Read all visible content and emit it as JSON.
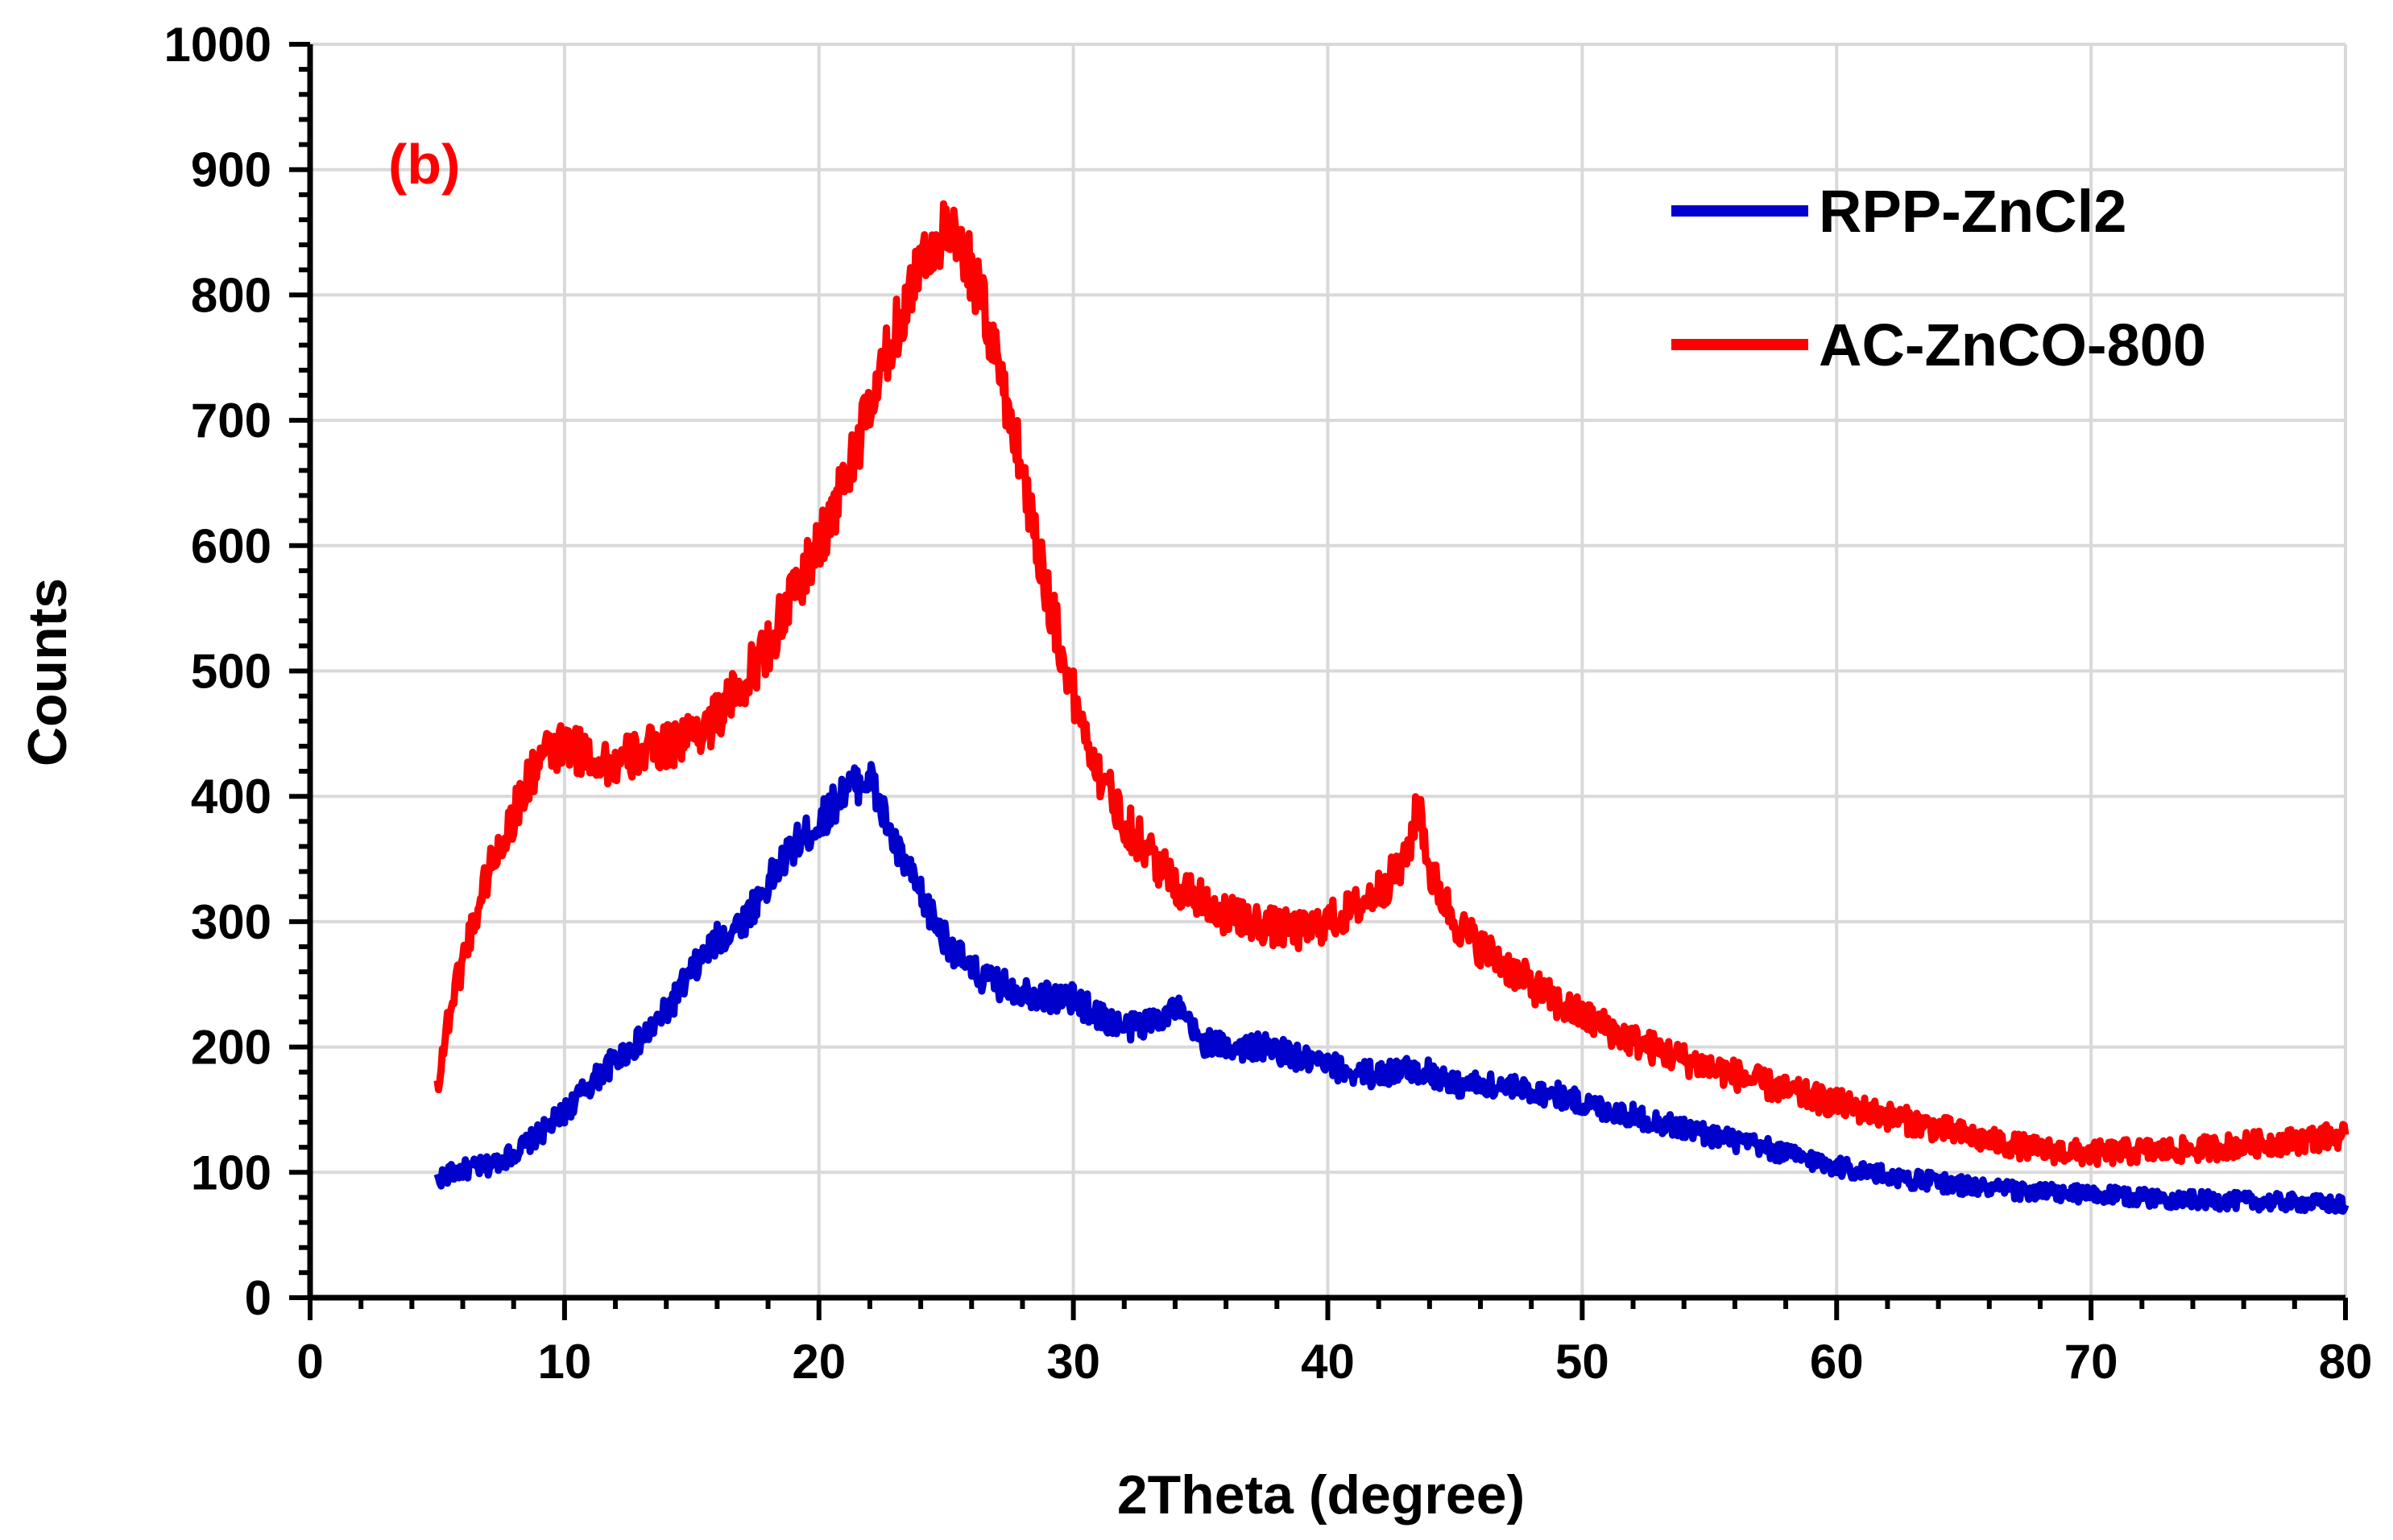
{
  "chart_data": {
    "type": "line",
    "title": "",
    "annotation": "(b)",
    "xlabel": "2Theta (degree)",
    "ylabel": "Counts",
    "xlim": [
      0,
      80
    ],
    "ylim": [
      0,
      1000
    ],
    "x_ticks": [
      0,
      10,
      20,
      30,
      40,
      50,
      60,
      70,
      80
    ],
    "y_ticks": [
      0,
      100,
      200,
      300,
      400,
      500,
      600,
      700,
      800,
      900,
      1000
    ],
    "x_tick_labels": [
      "0",
      "10",
      "20",
      "30",
      "40",
      "50",
      "60",
      "70",
      "80"
    ],
    "y_tick_labels": [
      "0",
      "100",
      "200",
      "300",
      "400",
      "500",
      "600",
      "700",
      "800",
      "900",
      "1000"
    ],
    "grid": true,
    "legend_position": "top-right",
    "colors": {
      "annotation": "#ff0000"
    },
    "series": [
      {
        "name": "RPP-ZnCl2",
        "color": "#0000cc",
        "points": [
          [
            5,
            95
          ],
          [
            6,
            102
          ],
          [
            7,
            105
          ],
          [
            8,
            115
          ],
          [
            9,
            130
          ],
          [
            10,
            148
          ],
          [
            11,
            170
          ],
          [
            12,
            190
          ],
          [
            13,
            205
          ],
          [
            14,
            228
          ],
          [
            15,
            260
          ],
          [
            16,
            285
          ],
          [
            17,
            300
          ],
          [
            18,
            330
          ],
          [
            19,
            360
          ],
          [
            20,
            378
          ],
          [
            21,
            405
          ],
          [
            22,
            415
          ],
          [
            23,
            360
          ],
          [
            24,
            320
          ],
          [
            25,
            285
          ],
          [
            26,
            260
          ],
          [
            27,
            250
          ],
          [
            28,
            245
          ],
          [
            29,
            240
          ],
          [
            30,
            238
          ],
          [
            31,
            225
          ],
          [
            32,
            215
          ],
          [
            33,
            220
          ],
          [
            34,
            232
          ],
          [
            35,
            205
          ],
          [
            36,
            200
          ],
          [
            37,
            200
          ],
          [
            38,
            198
          ],
          [
            39,
            190
          ],
          [
            40,
            185
          ],
          [
            41,
            180
          ],
          [
            42,
            178
          ],
          [
            43,
            182
          ],
          [
            44,
            180
          ],
          [
            45,
            170
          ],
          [
            46,
            170
          ],
          [
            47,
            168
          ],
          [
            48,
            165
          ],
          [
            49,
            162
          ],
          [
            50,
            155
          ],
          [
            52,
            145
          ],
          [
            54,
            135
          ],
          [
            56,
            125
          ],
          [
            58,
            115
          ],
          [
            60,
            105
          ],
          [
            62,
            97
          ],
          [
            64,
            92
          ],
          [
            66,
            87
          ],
          [
            68,
            84
          ],
          [
            70,
            82
          ],
          [
            72,
            80
          ],
          [
            74,
            78
          ],
          [
            76,
            77
          ],
          [
            78,
            76
          ],
          [
            80,
            74
          ]
        ]
      },
      {
        "name": "AC-ZnCO-800",
        "color": "#ff0000",
        "points": [
          [
            5,
            170
          ],
          [
            5.5,
            230
          ],
          [
            6,
            270
          ],
          [
            7,
            340
          ],
          [
            8,
            385
          ],
          [
            9,
            430
          ],
          [
            10,
            440
          ],
          [
            11,
            432
          ],
          [
            12,
            425
          ],
          [
            13,
            435
          ],
          [
            14,
            440
          ],
          [
            15,
            450
          ],
          [
            16,
            462
          ],
          [
            17,
            490
          ],
          [
            18,
            520
          ],
          [
            19,
            560
          ],
          [
            20,
            600
          ],
          [
            21,
            650
          ],
          [
            22,
            710
          ],
          [
            23,
            770
          ],
          [
            24,
            830
          ],
          [
            25,
            850
          ],
          [
            26,
            820
          ],
          [
            27,
            750
          ],
          [
            28,
            660
          ],
          [
            29,
            560
          ],
          [
            30,
            480
          ],
          [
            31,
            420
          ],
          [
            32,
            380
          ],
          [
            33,
            355
          ],
          [
            34,
            330
          ],
          [
            35,
            320
          ],
          [
            36,
            305
          ],
          [
            37,
            300
          ],
          [
            38,
            295
          ],
          [
            39,
            292
          ],
          [
            40,
            300
          ],
          [
            41,
            310
          ],
          [
            42,
            325
          ],
          [
            43,
            345
          ],
          [
            43.6,
            395
          ],
          [
            44,
            340
          ],
          [
            45,
            300
          ],
          [
            46,
            280
          ],
          [
            47,
            265
          ],
          [
            48,
            250
          ],
          [
            49,
            235
          ],
          [
            50,
            225
          ],
          [
            52,
            205
          ],
          [
            54,
            190
          ],
          [
            56,
            178
          ],
          [
            58,
            165
          ],
          [
            60,
            155
          ],
          [
            62,
            145
          ],
          [
            64,
            135
          ],
          [
            66,
            125
          ],
          [
            68,
            118
          ],
          [
            70,
            115
          ],
          [
            72,
            117
          ],
          [
            74,
            118
          ],
          [
            76,
            122
          ],
          [
            78,
            125
          ],
          [
            80,
            130
          ]
        ]
      }
    ]
  }
}
